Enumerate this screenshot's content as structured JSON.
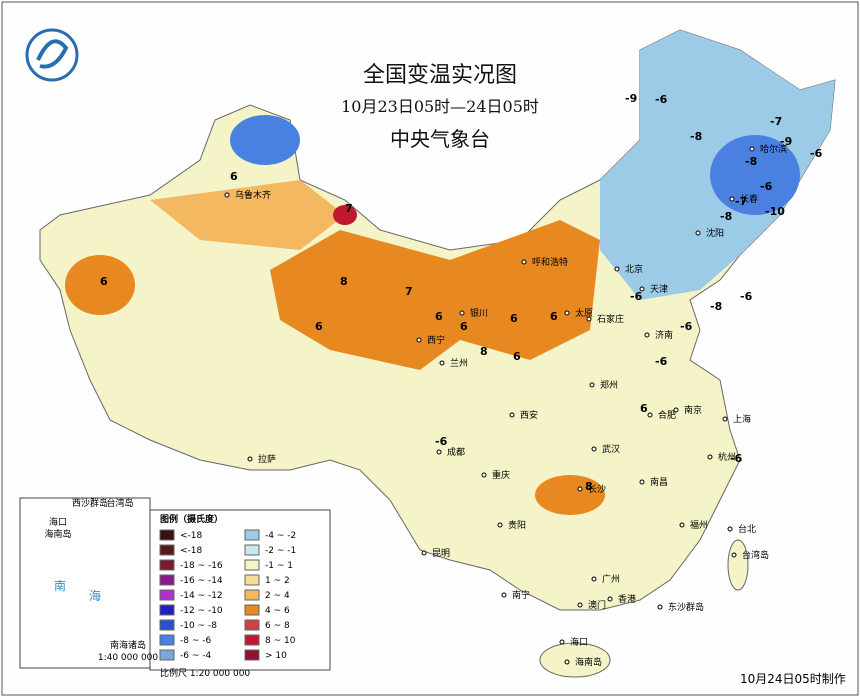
{
  "header": {
    "title": "全国变温实况图",
    "subtitle": "10月23日05时—24日05时",
    "agency": "中央气象台"
  },
  "legend": {
    "title": "图例（摄氏度）",
    "items": [
      {
        "label": "<-18",
        "color": "#3a1010"
      },
      {
        "label": "<-18",
        "color": "#5a1a1a"
      },
      {
        "label": "-18 ~ -16",
        "color": "#7a1a2a"
      },
      {
        "label": "-16 ~ -14",
        "color": "#8a1a8a"
      },
      {
        "label": "-14 ~ -12",
        "color": "#b030d0"
      },
      {
        "label": "-12 ~ -10",
        "color": "#2020c0"
      },
      {
        "label": "-10 ~ -8",
        "color": "#2a50d0"
      },
      {
        "label": "-8 ~ -6",
        "color": "#4a80e0"
      },
      {
        "label": "-6 ~ -4",
        "color": "#7aa8d8"
      },
      {
        "label": "-4 ~ -2",
        "color": "#9ccbe8"
      },
      {
        "label": "-2 ~ -1",
        "color": "#c8e8f0"
      },
      {
        "label": "-1 ~ 1",
        "color": "#f4f4c8"
      },
      {
        "label": "1 ~ 2",
        "color": "#f8dc98"
      },
      {
        "label": "2 ~ 4",
        "color": "#f4b860"
      },
      {
        "label": "4 ~ 6",
        "color": "#e88820"
      },
      {
        "label": "6 ~ 8",
        "color": "#d04040"
      },
      {
        "label": "8 ~ 10",
        "color": "#c01830"
      },
      {
        "label": "> 10",
        "color": "#901030"
      }
    ]
  },
  "scale": "比例尺   1:20 000 000",
  "footer": "10月24日05时制作",
  "inset": {
    "labels": [
      "西沙群岛",
      "台湾岛",
      "海口",
      "海南岛",
      "南",
      "海",
      "南海诸岛",
      "1:40 000 000"
    ]
  },
  "cities": [
    "乌鲁木齐",
    "拉萨",
    "西宁",
    "兰州",
    "银川",
    "呼和浩特",
    "太原",
    "石家庄",
    "北京",
    "天津",
    "济南",
    "郑州",
    "西安",
    "成都",
    "重庆",
    "武汉",
    "长沙",
    "合肥",
    "南京",
    "上海",
    "杭州",
    "南昌",
    "福州",
    "台北",
    "台湾岛",
    "贵阳",
    "昆明",
    "南宁",
    "广州",
    "香港",
    "澳门",
    "海口",
    "海南岛",
    "沈阳",
    "长春",
    "哈尔滨",
    "东沙群岛"
  ],
  "values": [
    -9,
    -6,
    -8,
    -9,
    -6,
    -7,
    -8,
    -6,
    -7,
    -8,
    -10,
    6,
    6,
    7,
    8,
    6,
    7,
    6,
    6,
    8,
    6,
    6,
    8,
    6,
    -6,
    -6,
    -6,
    -8,
    -6,
    6,
    -6,
    -6
  ]
}
